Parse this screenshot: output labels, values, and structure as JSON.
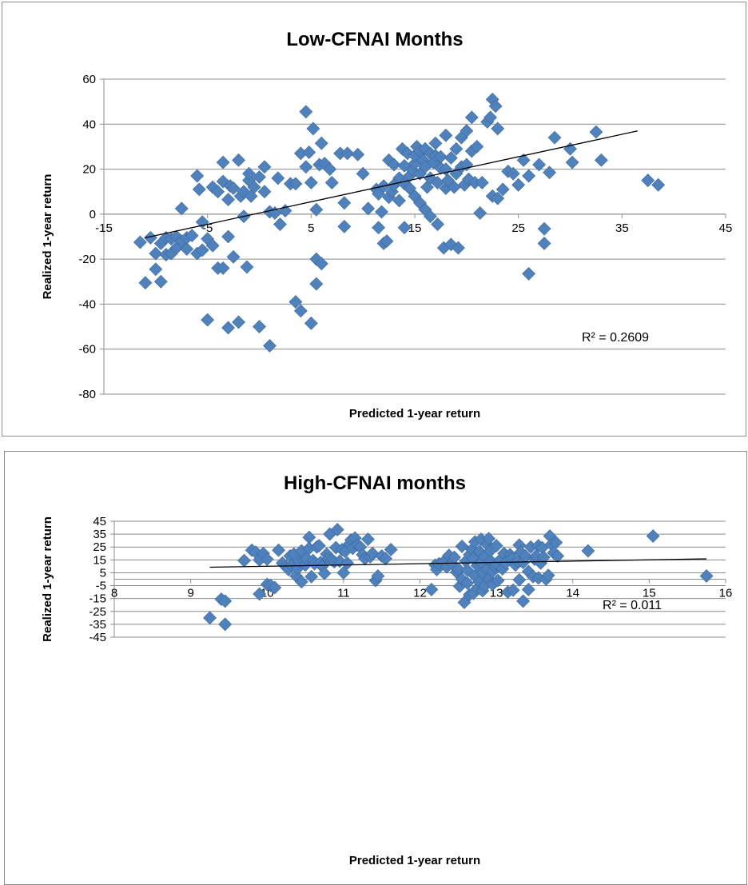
{
  "chart_data": [
    {
      "type": "scatter",
      "title": "Low-CFNAI Months",
      "xlabel": "Predicted 1-year return",
      "ylabel": "Realized 1-year return",
      "xlim": [
        -15,
        45
      ],
      "ylim": [
        -80,
        60
      ],
      "xticks": [
        -15,
        -5,
        5,
        15,
        25,
        35,
        45
      ],
      "yticks": [
        -80,
        -60,
        -40,
        -20,
        0,
        20,
        40,
        60
      ],
      "x_tick_labels": [
        "-15",
        "-5",
        "5",
        "15",
        "25",
        "35",
        "45"
      ],
      "y_tick_labels": [
        "-80",
        "-60",
        "-40",
        "-20",
        "0",
        "20",
        "40",
        "60"
      ],
      "grid": "horizontal",
      "marker": "diamond",
      "color": "#4f81bd",
      "r2_label": "R² = 0.2609",
      "trendline": {
        "x1": -11,
        "y1": -10.5,
        "x2": 36.5,
        "y2": 37
      },
      "points": [
        [
          -11.5,
          -12.5
        ],
        [
          -11,
          -30.5
        ],
        [
          -10.5,
          -10.5
        ],
        [
          -10,
          -24.5
        ],
        [
          -10,
          -17.5
        ],
        [
          -9.5,
          -30
        ],
        [
          -9.5,
          -13
        ],
        [
          -9,
          -18
        ],
        [
          -9,
          -10.5
        ],
        [
          -8.5,
          -11
        ],
        [
          -8.5,
          -17.5
        ],
        [
          -8,
          -10
        ],
        [
          -8,
          -15
        ],
        [
          -7.5,
          2.5
        ],
        [
          -7.5,
          -12
        ],
        [
          -7,
          -15.5
        ],
        [
          -7,
          -10.5
        ],
        [
          -6.5,
          -9.5
        ],
        [
          -6,
          -17.5
        ],
        [
          -6,
          17
        ],
        [
          -5.8,
          11
        ],
        [
          -5.5,
          -3.5
        ],
        [
          -5.5,
          -16
        ],
        [
          -5,
          -47
        ],
        [
          -5,
          -11
        ],
        [
          -4.5,
          12
        ],
        [
          -4.5,
          -14
        ],
        [
          -4,
          -24
        ],
        [
          -4,
          10
        ],
        [
          -3.5,
          14.5
        ],
        [
          -3.5,
          23
        ],
        [
          -3.5,
          -24
        ],
        [
          -3,
          -50.5
        ],
        [
          -3,
          6.5
        ],
        [
          -3,
          -10
        ],
        [
          -2.8,
          12.5
        ],
        [
          -2.5,
          -19
        ],
        [
          -2.5,
          11.5
        ],
        [
          -2,
          -48
        ],
        [
          -2,
          24
        ],
        [
          -1.8,
          8
        ],
        [
          -1.5,
          -1
        ],
        [
          -1.5,
          10
        ],
        [
          -1.2,
          -23.5
        ],
        [
          -1,
          15
        ],
        [
          -1,
          18
        ],
        [
          -0.8,
          8
        ],
        [
          -0.5,
          12
        ],
        [
          0,
          -50
        ],
        [
          0,
          16.5
        ],
        [
          0.5,
          21
        ],
        [
          0.5,
          10
        ],
        [
          1,
          1
        ],
        [
          1,
          -58.5
        ],
        [
          1.5,
          0.5
        ],
        [
          1.8,
          16
        ],
        [
          2,
          -4.5
        ],
        [
          2.5,
          1.5
        ],
        [
          3,
          13.5
        ],
        [
          3.5,
          13.5
        ],
        [
          3.5,
          -39
        ],
        [
          4,
          -43
        ],
        [
          4,
          27
        ],
        [
          4.5,
          45.5
        ],
        [
          4.5,
          21
        ],
        [
          4.8,
          27.5
        ],
        [
          5,
          14
        ],
        [
          5,
          -48.5
        ],
        [
          5.2,
          38
        ],
        [
          5.5,
          -31
        ],
        [
          5.5,
          -20
        ],
        [
          5.5,
          2
        ],
        [
          5.8,
          22
        ],
        [
          6,
          31.5
        ],
        [
          6,
          -22
        ],
        [
          6.3,
          22.5
        ],
        [
          6.8,
          20
        ],
        [
          7,
          14
        ],
        [
          7.8,
          27
        ],
        [
          8.2,
          5
        ],
        [
          8.2,
          -5.5
        ],
        [
          8.5,
          27
        ],
        [
          9.5,
          26.5
        ],
        [
          10,
          18
        ],
        [
          10.5,
          2.5
        ],
        [
          11.3,
          11
        ],
        [
          11.5,
          -6
        ],
        [
          11.5,
          9
        ],
        [
          11.8,
          1
        ],
        [
          12,
          -13
        ],
        [
          12,
          12.5
        ],
        [
          12.3,
          -12
        ],
        [
          12.5,
          7.5
        ],
        [
          12.5,
          24
        ],
        [
          12.8,
          10
        ],
        [
          13,
          13
        ],
        [
          13,
          22
        ],
        [
          13.5,
          6
        ],
        [
          13.5,
          16
        ],
        [
          13.8,
          29
        ],
        [
          14,
          13.5
        ],
        [
          14,
          21.5
        ],
        [
          14,
          -6
        ],
        [
          14.3,
          27
        ],
        [
          14.5,
          11.5
        ],
        [
          14.5,
          17
        ],
        [
          14.8,
          19.5
        ],
        [
          15,
          22.5
        ],
        [
          15,
          26
        ],
        [
          15,
          8
        ],
        [
          15.2,
          30
        ],
        [
          15.5,
          5
        ],
        [
          15.5,
          28
        ],
        [
          15.5,
          18
        ],
        [
          15.8,
          24
        ],
        [
          16,
          21
        ],
        [
          16,
          29
        ],
        [
          16,
          2
        ],
        [
          16.2,
          12
        ],
        [
          16.5,
          16
        ],
        [
          16.5,
          27
        ],
        [
          16.5,
          -1
        ],
        [
          16.8,
          23
        ],
        [
          17,
          26
        ],
        [
          17,
          31.5
        ],
        [
          17.2,
          14
        ],
        [
          17.2,
          -4.5
        ],
        [
          17.5,
          20.5
        ],
        [
          17.5,
          25.5
        ],
        [
          17.8,
          -15
        ],
        [
          18,
          11.5
        ],
        [
          18,
          20
        ],
        [
          18,
          35
        ],
        [
          18.2,
          15
        ],
        [
          18.5,
          -13.5
        ],
        [
          18.5,
          25
        ],
        [
          18.8,
          12
        ],
        [
          19,
          18
        ],
        [
          19,
          29
        ],
        [
          19.2,
          -15
        ],
        [
          19.5,
          21
        ],
        [
          19.5,
          34
        ],
        [
          19.8,
          13
        ],
        [
          20,
          22
        ],
        [
          20,
          37
        ],
        [
          20.2,
          15.5
        ],
        [
          20.5,
          28
        ],
        [
          20.5,
          43
        ],
        [
          20.8,
          14
        ],
        [
          21,
          30
        ],
        [
          21.3,
          0.5
        ],
        [
          21.5,
          14
        ],
        [
          22,
          41
        ],
        [
          22.3,
          43
        ],
        [
          22.5,
          8
        ],
        [
          22.5,
          51
        ],
        [
          22.8,
          48
        ],
        [
          23,
          7
        ],
        [
          23,
          38
        ],
        [
          23.5,
          11
        ],
        [
          24,
          19
        ],
        [
          24.5,
          18
        ],
        [
          25,
          13
        ],
        [
          25.5,
          24
        ],
        [
          26,
          -26.5
        ],
        [
          26,
          17
        ],
        [
          27,
          22
        ],
        [
          27.5,
          -13
        ],
        [
          27.5,
          -6.5
        ],
        [
          28,
          18.5
        ],
        [
          28.5,
          34
        ],
        [
          30,
          29
        ],
        [
          30.2,
          23
        ],
        [
          32.5,
          36.5
        ],
        [
          33,
          24
        ],
        [
          37.5,
          15
        ],
        [
          38.5,
          13
        ]
      ]
    },
    {
      "type": "scatter",
      "title": "High-CFNAI months",
      "xlabel": "Predicted 1-year return",
      "ylabel": "Realized 1-year return",
      "xlim": [
        8,
        16
      ],
      "ylim": [
        -45,
        45
      ],
      "xticks": [
        8,
        9,
        10,
        11,
        12,
        13,
        14,
        15,
        16
      ],
      "yticks": [
        -45,
        -35,
        -25,
        -15,
        -5,
        5,
        15,
        25,
        35,
        45
      ],
      "x_tick_labels": [
        "8",
        "9",
        "10",
        "11",
        "12",
        "13",
        "14",
        "15",
        "16"
      ],
      "y_tick_labels": [
        "-45",
        "-35",
        "-25",
        "-15",
        "-5",
        "5",
        "15",
        "25",
        "35",
        "45"
      ],
      "grid": "horizontal",
      "marker": "diamond",
      "color": "#4f81bd",
      "r2_label": "R² = 0.011",
      "trendline": {
        "x1": 9.25,
        "y1": 9.3,
        "x2": 15.75,
        "y2": 15.8
      },
      "points": [
        [
          9.25,
          -30
        ],
        [
          9.4,
          -15.5
        ],
        [
          9.45,
          -17
        ],
        [
          9.45,
          -35
        ],
        [
          9.7,
          14.5
        ],
        [
          9.8,
          22.5
        ],
        [
          9.85,
          21
        ],
        [
          9.9,
          15
        ],
        [
          9.9,
          -11.5
        ],
        [
          9.95,
          20
        ],
        [
          10.0,
          15.5
        ],
        [
          10.0,
          -4
        ],
        [
          10.05,
          -5
        ],
        [
          10.1,
          -6.5
        ],
        [
          10.15,
          22.5
        ],
        [
          10.2,
          12.5
        ],
        [
          10.25,
          10
        ],
        [
          10.28,
          7.5
        ],
        [
          10.3,
          18
        ],
        [
          10.32,
          11
        ],
        [
          10.35,
          19.5
        ],
        [
          10.38,
          2.5
        ],
        [
          10.4,
          8.5
        ],
        [
          10.42,
          14
        ],
        [
          10.45,
          -2
        ],
        [
          10.45,
          22
        ],
        [
          10.48,
          15
        ],
        [
          10.5,
          11
        ],
        [
          10.52,
          16
        ],
        [
          10.55,
          24
        ],
        [
          10.55,
          32.5
        ],
        [
          10.58,
          2
        ],
        [
          10.6,
          14.5
        ],
        [
          10.62,
          12
        ],
        [
          10.65,
          25
        ],
        [
          10.68,
          26
        ],
        [
          10.7,
          13
        ],
        [
          10.72,
          10
        ],
        [
          10.75,
          4.5
        ],
        [
          10.78,
          19.5
        ],
        [
          10.8,
          16
        ],
        [
          10.82,
          35
        ],
        [
          10.85,
          15
        ],
        [
          10.88,
          13.5
        ],
        [
          10.9,
          24.5
        ],
        [
          10.92,
          38.5
        ],
        [
          10.95,
          14
        ],
        [
          10.98,
          23
        ],
        [
          11.0,
          5
        ],
        [
          11.02,
          21.5
        ],
        [
          11.05,
          12.5
        ],
        [
          11.08,
          27.5
        ],
        [
          11.1,
          30.5
        ],
        [
          11.12,
          24
        ],
        [
          11.15,
          32
        ],
        [
          11.18,
          26.5
        ],
        [
          11.22,
          25
        ],
        [
          11.25,
          19
        ],
        [
          11.28,
          16
        ],
        [
          11.32,
          31
        ],
        [
          11.35,
          17.5
        ],
        [
          11.38,
          20
        ],
        [
          11.42,
          -1
        ],
        [
          11.45,
          2.5
        ],
        [
          11.5,
          18
        ],
        [
          11.55,
          16
        ],
        [
          11.62,
          23
        ],
        [
          12.15,
          -8
        ],
        [
          12.2,
          11
        ],
        [
          12.22,
          7.5
        ],
        [
          12.25,
          12
        ],
        [
          12.3,
          13
        ],
        [
          12.35,
          9.5
        ],
        [
          12.38,
          18.5
        ],
        [
          12.42,
          12
        ],
        [
          12.45,
          17
        ],
        [
          12.48,
          5.5
        ],
        [
          12.5,
          8
        ],
        [
          12.52,
          -5.5
        ],
        [
          12.55,
          0
        ],
        [
          12.55,
          25.5
        ],
        [
          12.58,
          -18
        ],
        [
          12.6,
          14
        ],
        [
          12.62,
          -3
        ],
        [
          12.62,
          7
        ],
        [
          12.65,
          -12
        ],
        [
          12.65,
          19
        ],
        [
          12.68,
          23
        ],
        [
          12.7,
          16
        ],
        [
          12.7,
          -11
        ],
        [
          12.72,
          2.5
        ],
        [
          12.72,
          29
        ],
        [
          12.75,
          10.5
        ],
        [
          12.75,
          -7
        ],
        [
          12.78,
          21.5
        ],
        [
          12.78,
          -2
        ],
        [
          12.8,
          31
        ],
        [
          12.8,
          13
        ],
        [
          12.82,
          5
        ],
        [
          12.82,
          -9
        ],
        [
          12.85,
          17.5
        ],
        [
          12.85,
          -5
        ],
        [
          12.88,
          27
        ],
        [
          12.88,
          8
        ],
        [
          12.9,
          31.5
        ],
        [
          12.9,
          0
        ],
        [
          12.92,
          14.5
        ],
        [
          12.92,
          22
        ],
        [
          12.95,
          -4
        ],
        [
          12.95,
          6
        ],
        [
          12.98,
          10
        ],
        [
          13.0,
          26
        ],
        [
          13.0,
          12
        ],
        [
          13.02,
          -1
        ],
        [
          13.05,
          15
        ],
        [
          13.08,
          8
        ],
        [
          13.1,
          20
        ],
        [
          13.12,
          12.5
        ],
        [
          13.15,
          -10
        ],
        [
          13.18,
          19
        ],
        [
          13.2,
          16
        ],
        [
          13.22,
          -8.5
        ],
        [
          13.25,
          11
        ],
        [
          13.28,
          14
        ],
        [
          13.3,
          26.5
        ],
        [
          13.3,
          -0.5
        ],
        [
          13.32,
          21
        ],
        [
          13.35,
          13
        ],
        [
          13.35,
          -17
        ],
        [
          13.38,
          18
        ],
        [
          13.42,
          -8
        ],
        [
          13.42,
          6
        ],
        [
          13.45,
          25
        ],
        [
          13.48,
          2
        ],
        [
          13.5,
          15.5
        ],
        [
          13.52,
          18
        ],
        [
          13.55,
          26
        ],
        [
          13.55,
          1
        ],
        [
          13.58,
          12.5
        ],
        [
          13.6,
          24.5
        ],
        [
          13.62,
          17
        ],
        [
          13.65,
          0
        ],
        [
          13.68,
          3
        ],
        [
          13.7,
          33.5
        ],
        [
          13.72,
          27
        ],
        [
          13.75,
          20.5
        ],
        [
          13.78,
          28.5
        ],
        [
          13.8,
          18
        ],
        [
          14.2,
          22
        ],
        [
          15.05,
          33.5
        ],
        [
          15.75,
          2.5
        ]
      ]
    }
  ]
}
